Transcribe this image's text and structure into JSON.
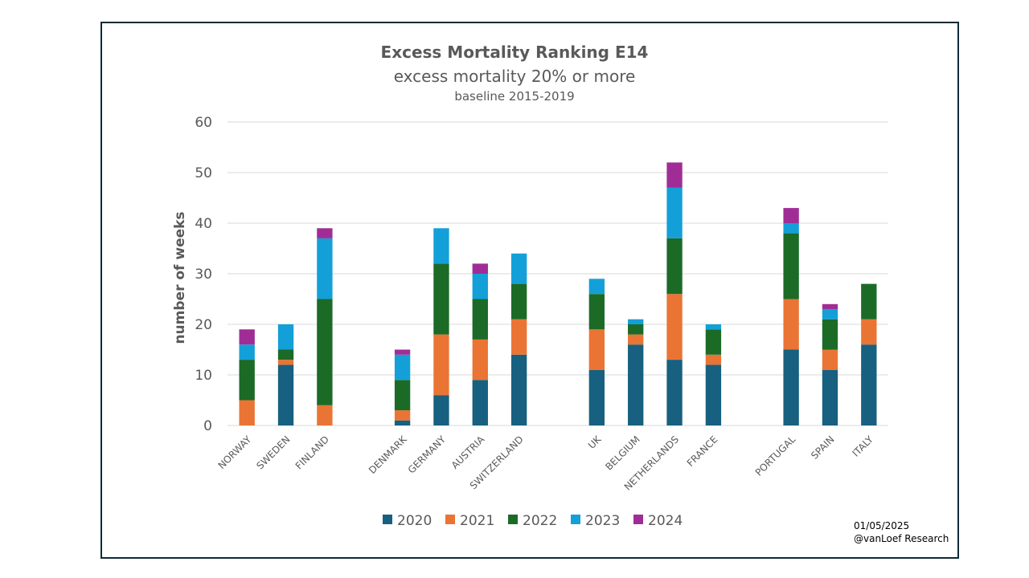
{
  "chart_data": {
    "type": "bar",
    "stacked": true,
    "title": "Excess Mortality Ranking E14",
    "subtitle": "excess mortality 20% or more",
    "subsubtitle": "baseline 2015-2019",
    "xlabel": "",
    "ylabel": "number of weeks",
    "ylim": [
      0,
      60
    ],
    "yticks": [
      0,
      10,
      20,
      30,
      40,
      50,
      60
    ],
    "grid": true,
    "legend_position": "bottom",
    "groups": [
      [
        "NORWAY",
        "SWEDEN",
        "FINLAND"
      ],
      [
        "DENMARK",
        "GERMANY",
        "AUSTRIA",
        "SWITZERLAND"
      ],
      [
        "UK",
        "BELGIUM",
        "NETHERLANDS",
        "FRANCE"
      ],
      [
        "PORTUGAL",
        "SPAIN",
        "ITALY"
      ]
    ],
    "categories": [
      "NORWAY",
      "SWEDEN",
      "FINLAND",
      "DENMARK",
      "GERMANY",
      "AUSTRIA",
      "SWITZERLAND",
      "UK",
      "BELGIUM",
      "NETHERLANDS",
      "FRANCE",
      "PORTUGAL",
      "SPAIN",
      "ITALY"
    ],
    "series": [
      {
        "name": "2020",
        "color": "#17607f",
        "values": [
          0,
          12,
          0,
          1,
          6,
          9,
          14,
          11,
          16,
          13,
          12,
          15,
          11,
          16
        ]
      },
      {
        "name": "2021",
        "color": "#ea7434",
        "values": [
          5,
          1,
          4,
          2,
          12,
          8,
          7,
          8,
          2,
          13,
          2,
          10,
          4,
          5
        ]
      },
      {
        "name": "2022",
        "color": "#1b6b27",
        "values": [
          8,
          2,
          21,
          6,
          14,
          8,
          7,
          7,
          2,
          11,
          5,
          13,
          6,
          7
        ]
      },
      {
        "name": "2023",
        "color": "#13a0d8",
        "values": [
          3,
          5,
          12,
          5,
          7,
          5,
          6,
          3,
          1,
          10,
          1,
          2,
          2,
          0
        ]
      },
      {
        "name": "2024",
        "color": "#a02d96",
        "values": [
          3,
          0,
          2,
          1,
          0,
          2,
          0,
          0,
          0,
          5,
          0,
          3,
          1,
          0
        ]
      }
    ]
  },
  "footer": {
    "date": "01/05/2025",
    "credit": "@vanLoef Research"
  }
}
